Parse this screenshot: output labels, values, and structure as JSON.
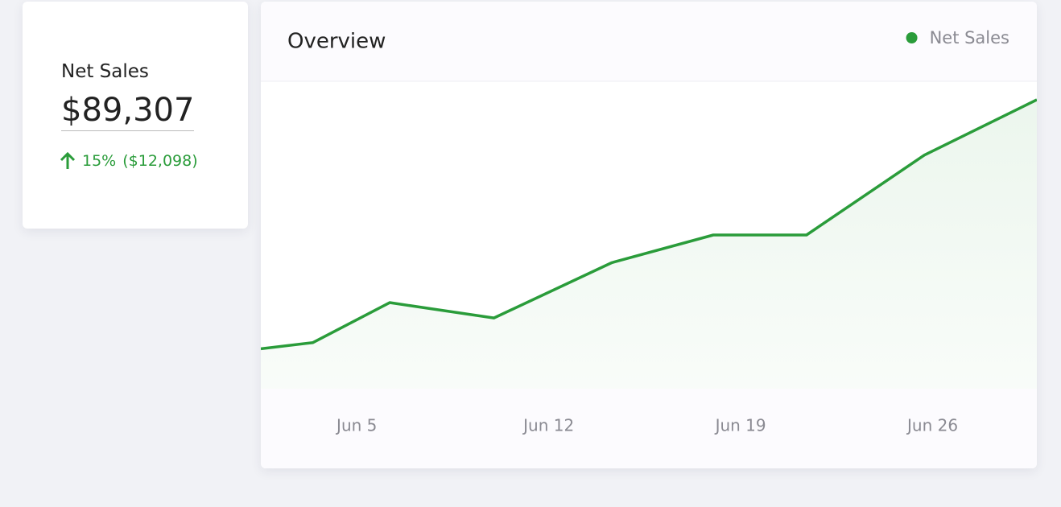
{
  "kpi": {
    "label": "Net Sales",
    "value": "$89,307",
    "change_percent": "15%",
    "change_amount": "($12,098)"
  },
  "chart_data": {
    "type": "line",
    "title": "Overview",
    "x": [
      1.5,
      3.4,
      6.2,
      10,
      14.3,
      18,
      21.4,
      25.7,
      29.8
    ],
    "series": [
      {
        "name": "Net Sales",
        "color": "#2a9c3a",
        "values": [
          13,
          15,
          28,
          23,
          41,
          50,
          50,
          76,
          94
        ]
      }
    ],
    "xlim": [
      1.5,
      29.8
    ],
    "xticks": [
      {
        "value": 5,
        "label": "Jun 5"
      },
      {
        "value": 12,
        "label": "Jun 12"
      },
      {
        "value": 19,
        "label": "Jun 19"
      },
      {
        "value": 26,
        "label": "Jun 26"
      }
    ],
    "ylim": [
      0,
      100
    ],
    "legend": "top-right"
  }
}
